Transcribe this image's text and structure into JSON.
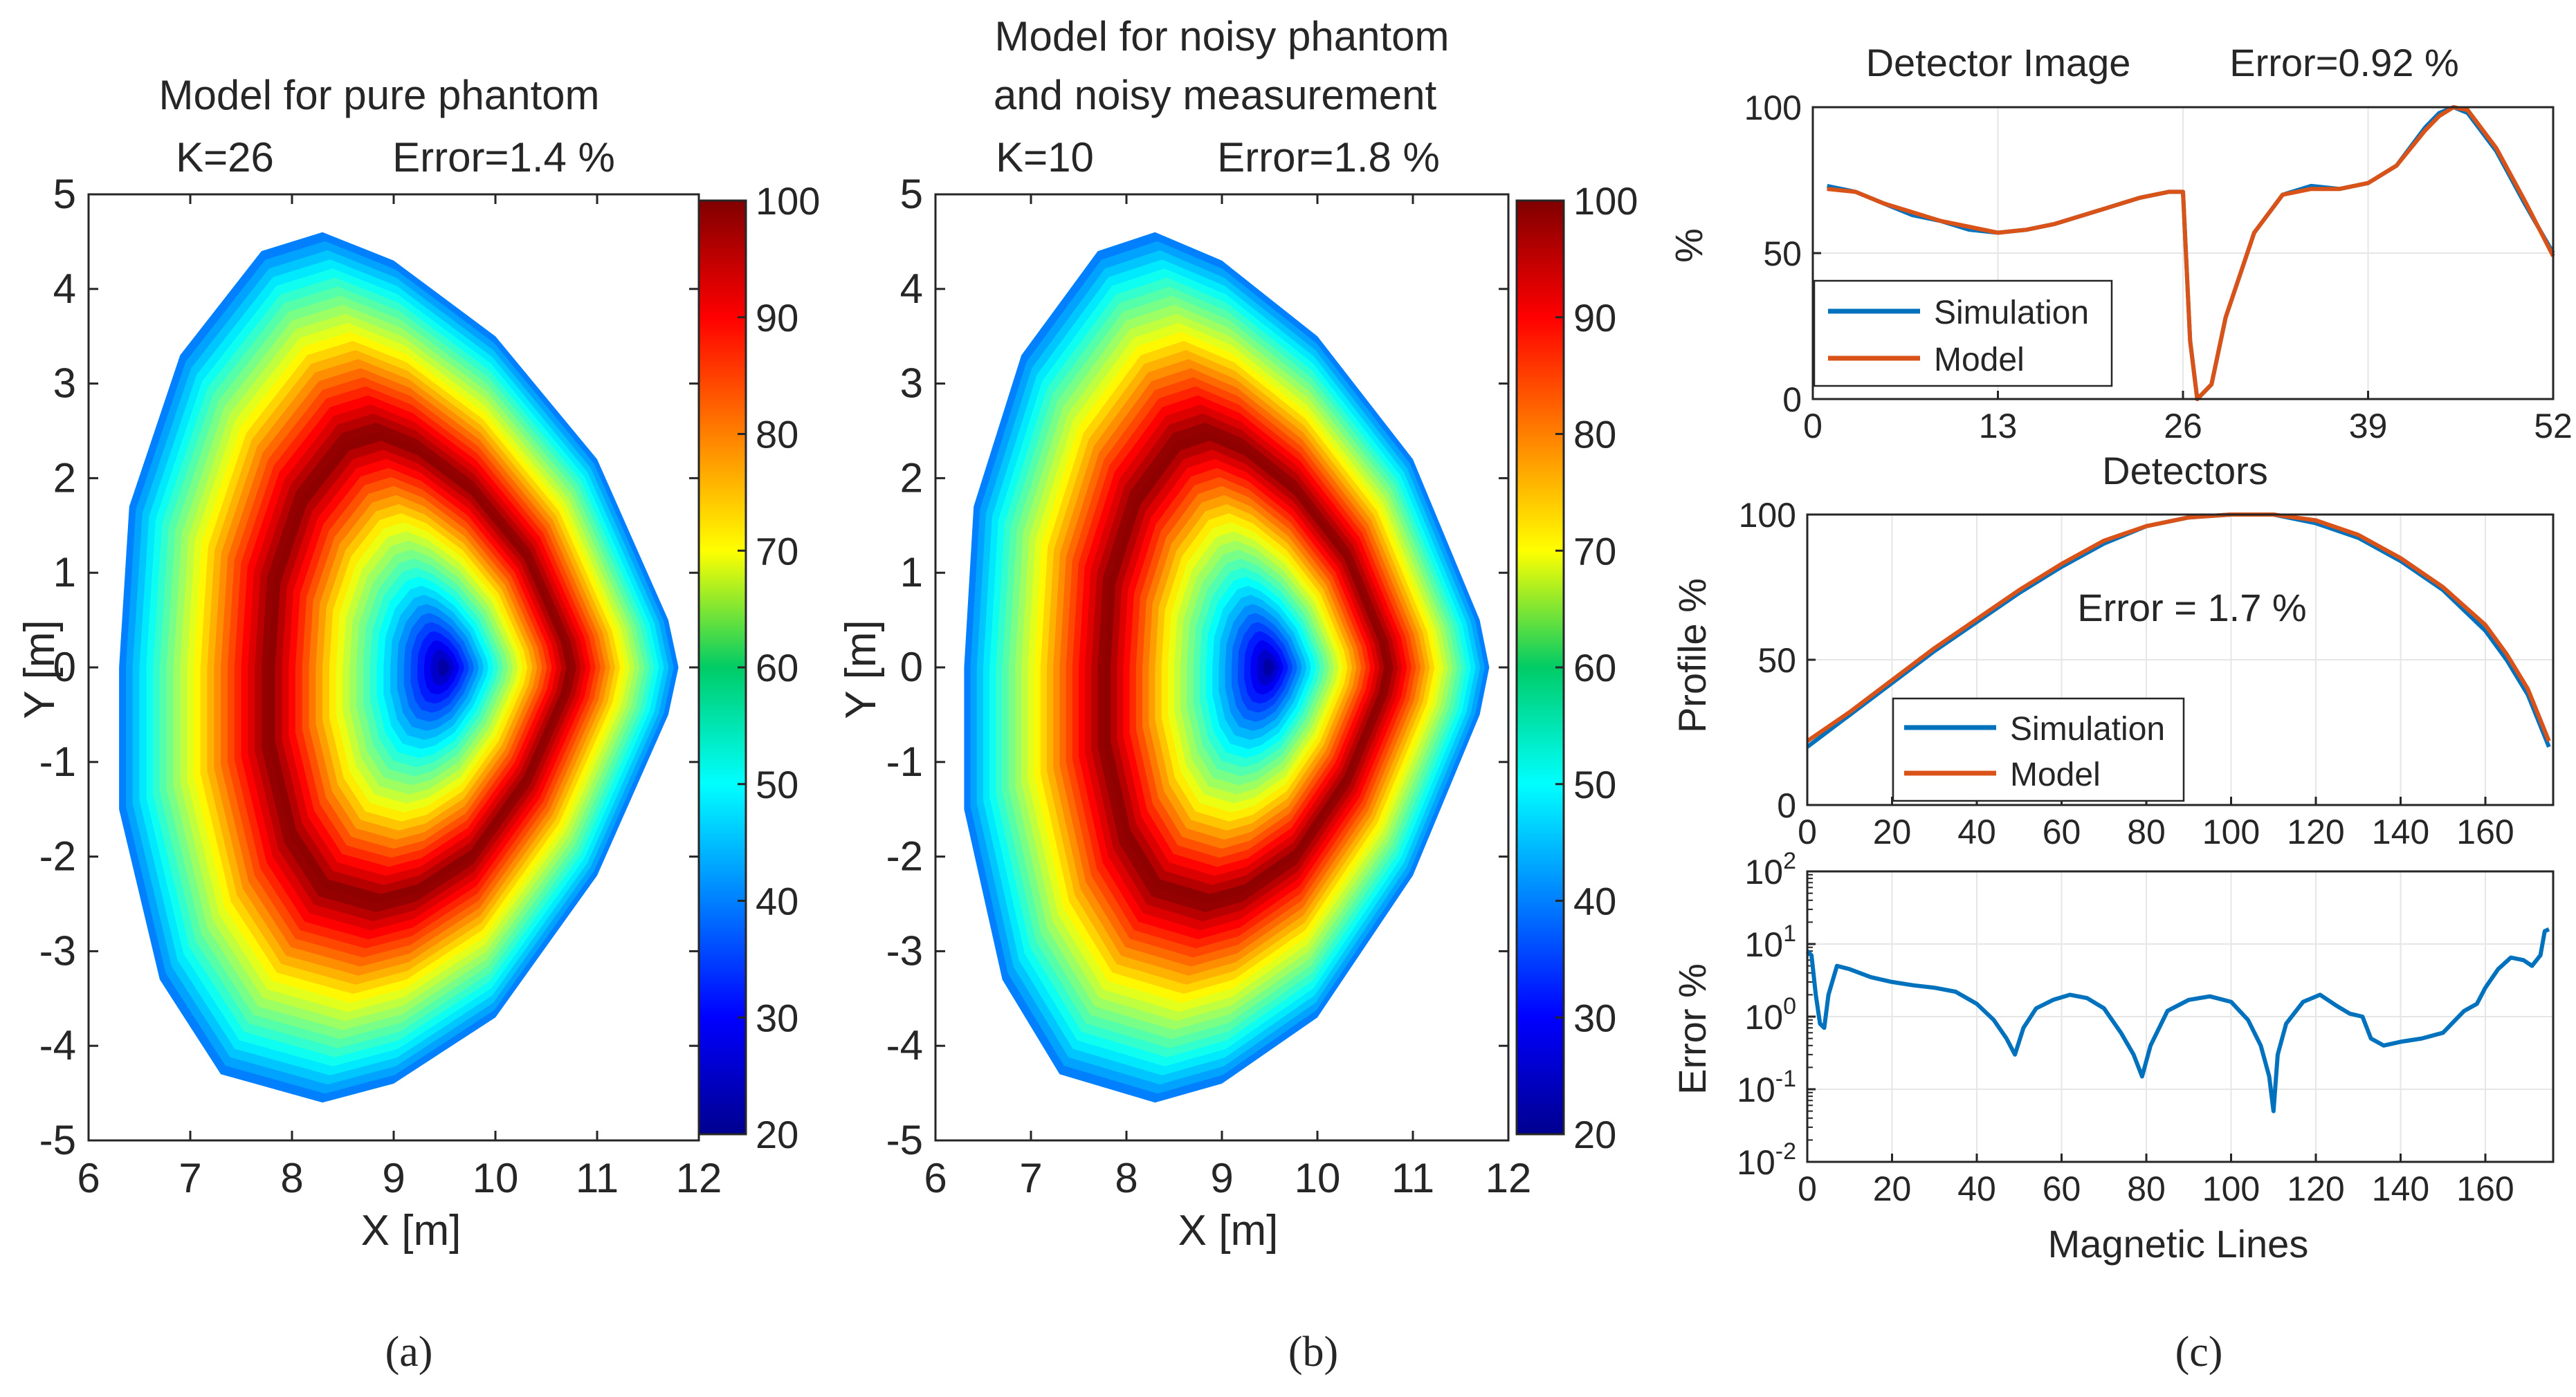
{
  "panels": {
    "a": {
      "title_line1": "Model for pure phantom",
      "title_line2_left": "K=26",
      "title_line2_right": "Error=1.4 %",
      "xlabel": "X [m]",
      "ylabel": "Y [m]",
      "caption": "(a)"
    },
    "b": {
      "title_line1": "Model for noisy phantom",
      "title_line1b": "and noisy measurement",
      "title_line2_left": "K=10",
      "title_line2_right": "Error=1.8 %",
      "xlabel": "X [m]",
      "ylabel": "Y [m]",
      "caption": "(b)"
    },
    "c": {
      "top_title_left": "Detector Image",
      "top_title_right": "Error=0.92 %",
      "top_xlabel": "Detectors",
      "top_ylabel": "%",
      "mid_ylabel": "Profile %",
      "mid_annotation": "Error = 1.7 %",
      "bot_ylabel": "Error %",
      "bot_xlabel": "Magnetic Lines",
      "caption": "(c)"
    }
  },
  "legend": {
    "simulation": "Simulation",
    "model": "Model"
  },
  "colors": {
    "simulation": "#0072BD",
    "model": "#D95319",
    "axis": "#262626",
    "grid": "#e6e6e6"
  },
  "chart_data": [
    {
      "id": "a",
      "type": "heatmap",
      "title": "Model for pure phantom K=26 Error=1.4 %",
      "xlabel": "X [m]",
      "ylabel": "Y [m]",
      "xlim": [
        6,
        12
      ],
      "ylim": [
        -5,
        5
      ],
      "xticks": [
        6,
        7,
        8,
        9,
        10,
        11,
        12
      ],
      "yticks": [
        -5,
        -4,
        -3,
        -2,
        -1,
        0,
        1,
        2,
        3,
        4,
        5
      ],
      "colorbar": {
        "min": 20,
        "max": 100,
        "ticks": [
          20,
          30,
          40,
          50,
          60,
          70,
          80,
          90,
          100
        ],
        "colormap": "jet"
      },
      "plasma_axis": [
        9.5,
        0.0
      ],
      "boundary": [
        [
          8.3,
          4.6
        ],
        [
          9.0,
          4.3
        ],
        [
          10.0,
          3.5
        ],
        [
          11.0,
          2.2
        ],
        [
          11.7,
          0.5
        ],
        [
          11.8,
          0.0
        ],
        [
          11.7,
          -0.5
        ],
        [
          11.0,
          -2.2
        ],
        [
          10.0,
          -3.7
        ],
        [
          9.0,
          -4.4
        ],
        [
          8.3,
          -4.6
        ],
        [
          7.3,
          -4.3
        ],
        [
          6.7,
          -3.3
        ],
        [
          6.3,
          -1.5
        ],
        [
          6.3,
          0.0
        ],
        [
          6.4,
          1.7
        ],
        [
          6.9,
          3.3
        ],
        [
          7.7,
          4.4
        ]
      ],
      "value_at_axis": 20,
      "value_at_edge": 40,
      "peak_value": 100
    },
    {
      "id": "b",
      "type": "heatmap",
      "title": "Model for noisy phantom and noisy measurement K=10 Error=1.8 %",
      "xlabel": "X [m]",
      "ylabel": "Y [m]",
      "xlim": [
        6,
        12
      ],
      "ylim": [
        -5,
        5
      ],
      "xticks": [
        6,
        7,
        8,
        9,
        10,
        11,
        12
      ],
      "yticks": [
        -5,
        -4,
        -3,
        -2,
        -1,
        0,
        1,
        2,
        3,
        4,
        5
      ],
      "colorbar": {
        "min": 20,
        "max": 100,
        "ticks": [
          20,
          30,
          40,
          50,
          60,
          70,
          80,
          90,
          100
        ],
        "colormap": "jet"
      },
      "plasma_axis": [
        9.5,
        0.0
      ],
      "boundary": [
        [
          8.3,
          4.6
        ],
        [
          9.0,
          4.3
        ],
        [
          10.0,
          3.5
        ],
        [
          11.0,
          2.2
        ],
        [
          11.7,
          0.5
        ],
        [
          11.8,
          0.0
        ],
        [
          11.7,
          -0.5
        ],
        [
          11.0,
          -2.2
        ],
        [
          10.0,
          -3.7
        ],
        [
          9.0,
          -4.4
        ],
        [
          8.3,
          -4.6
        ],
        [
          7.3,
          -4.3
        ],
        [
          6.7,
          -3.3
        ],
        [
          6.3,
          -1.5
        ],
        [
          6.3,
          0.0
        ],
        [
          6.4,
          1.7
        ],
        [
          6.9,
          3.3
        ],
        [
          7.7,
          4.4
        ]
      ],
      "value_at_axis": 20,
      "value_at_edge": 40,
      "peak_value": 100
    },
    {
      "id": "c-top",
      "type": "line",
      "title": "Detector Image Error=0.92 %",
      "xlabel": "Detectors",
      "ylabel": "%",
      "xlim": [
        0,
        52
      ],
      "ylim": [
        0,
        100
      ],
      "xticks": [
        0,
        13,
        26,
        39,
        52
      ],
      "yticks": [
        0,
        50,
        100
      ],
      "grid": true,
      "legend": "bottom-left",
      "series": [
        {
          "name": "Simulation",
          "x": [
            1,
            3,
            5,
            7,
            9,
            11,
            13,
            15,
            17,
            19,
            21,
            23,
            25,
            26,
            26.5,
            27,
            28,
            29,
            31,
            33,
            35,
            37,
            39,
            41,
            43,
            44,
            45,
            46,
            48,
            50,
            52
          ],
          "y": [
            73,
            71,
            67,
            63,
            61,
            58,
            57,
            58,
            60,
            63,
            66,
            69,
            71,
            71,
            20,
            0,
            5,
            28,
            57,
            70,
            73,
            72,
            74,
            80,
            93,
            98,
            100,
            98,
            85,
            67,
            50
          ]
        },
        {
          "name": "Model",
          "x": [
            1,
            3,
            5,
            7,
            9,
            11,
            13,
            15,
            17,
            19,
            21,
            23,
            25,
            26,
            26.5,
            27,
            28,
            29,
            31,
            33,
            35,
            37,
            39,
            41,
            43,
            44,
            45,
            46,
            48,
            50,
            52
          ],
          "y": [
            72,
            71,
            67,
            64,
            61,
            59,
            57,
            58,
            60,
            63,
            66,
            69,
            71,
            71,
            20,
            0,
            5,
            28,
            57,
            70,
            72,
            72,
            74,
            80,
            92,
            97,
            100,
            99,
            86,
            68,
            49
          ]
        }
      ]
    },
    {
      "id": "c-mid",
      "type": "line",
      "title": "",
      "xlabel": "",
      "ylabel": "Profile %",
      "xlim": [
        0,
        176
      ],
      "ylim": [
        0,
        100
      ],
      "xticks": [
        0,
        20,
        40,
        60,
        80,
        100,
        120,
        140,
        160
      ],
      "yticks": [
        0,
        50,
        100
      ],
      "grid": true,
      "legend": "bottom-left",
      "annotation": "Error = 1.7 %",
      "series": [
        {
          "name": "Simulation",
          "x": [
            0,
            10,
            20,
            30,
            40,
            50,
            60,
            70,
            80,
            90,
            100,
            110,
            120,
            130,
            140,
            150,
            160,
            165,
            170,
            175
          ],
          "y": [
            20,
            31,
            42,
            53,
            63,
            73,
            82,
            90,
            96,
            99,
            100,
            100,
            97,
            92,
            84,
            74,
            60,
            50,
            38,
            20
          ]
        },
        {
          "name": "Model",
          "x": [
            0,
            10,
            20,
            30,
            40,
            50,
            60,
            70,
            80,
            90,
            100,
            110,
            120,
            130,
            140,
            150,
            160,
            165,
            170,
            175
          ],
          "y": [
            22,
            32,
            43,
            54,
            64,
            74,
            83,
            91,
            96,
            99,
            100,
            100,
            98,
            93,
            85,
            75,
            62,
            52,
            40,
            22
          ]
        }
      ]
    },
    {
      "id": "c-bot",
      "type": "line",
      "title": "",
      "xlabel": "Magnetic Lines",
      "ylabel": "Error %",
      "xlim": [
        0,
        176
      ],
      "ylim": [
        0.01,
        100
      ],
      "yscale": "log",
      "xticks": [
        0,
        20,
        40,
        60,
        80,
        100,
        120,
        140,
        160
      ],
      "yticks": [
        0.01,
        0.1,
        1,
        10,
        100
      ],
      "ytick_labels": [
        [
          "10",
          "-2"
        ],
        [
          "10",
          "-1"
        ],
        [
          "10",
          "0"
        ],
        [
          "10",
          "1"
        ],
        [
          "10",
          "2"
        ]
      ],
      "grid": true,
      "series": [
        {
          "name": "",
          "x": [
            0,
            1,
            2,
            3,
            4,
            5,
            7,
            10,
            15,
            20,
            25,
            30,
            35,
            40,
            44,
            47,
            49,
            51,
            54,
            58,
            62,
            66,
            70,
            74,
            77,
            79,
            81,
            85,
            90,
            95,
            100,
            104,
            107,
            109,
            110,
            111,
            113,
            117,
            121,
            125,
            128,
            131,
            133,
            136,
            140,
            145,
            150,
            155,
            158,
            160,
            163,
            166,
            169,
            171,
            173,
            174,
            175
          ],
          "y": [
            8,
            7,
            2,
            0.8,
            0.7,
            2,
            5,
            4.5,
            3.5,
            3,
            2.7,
            2.5,
            2.2,
            1.5,
            0.9,
            0.5,
            0.3,
            0.7,
            1.3,
            1.7,
            2,
            1.8,
            1.3,
            0.6,
            0.3,
            0.15,
            0.4,
            1.2,
            1.7,
            1.9,
            1.6,
            0.9,
            0.4,
            0.15,
            0.05,
            0.3,
            0.8,
            1.6,
            2.0,
            1.4,
            1.1,
            1.0,
            0.5,
            0.4,
            0.45,
            0.5,
            0.6,
            1.2,
            1.5,
            2.5,
            4.5,
            6.5,
            6,
            5,
            7,
            15,
            16
          ]
        }
      ]
    }
  ]
}
